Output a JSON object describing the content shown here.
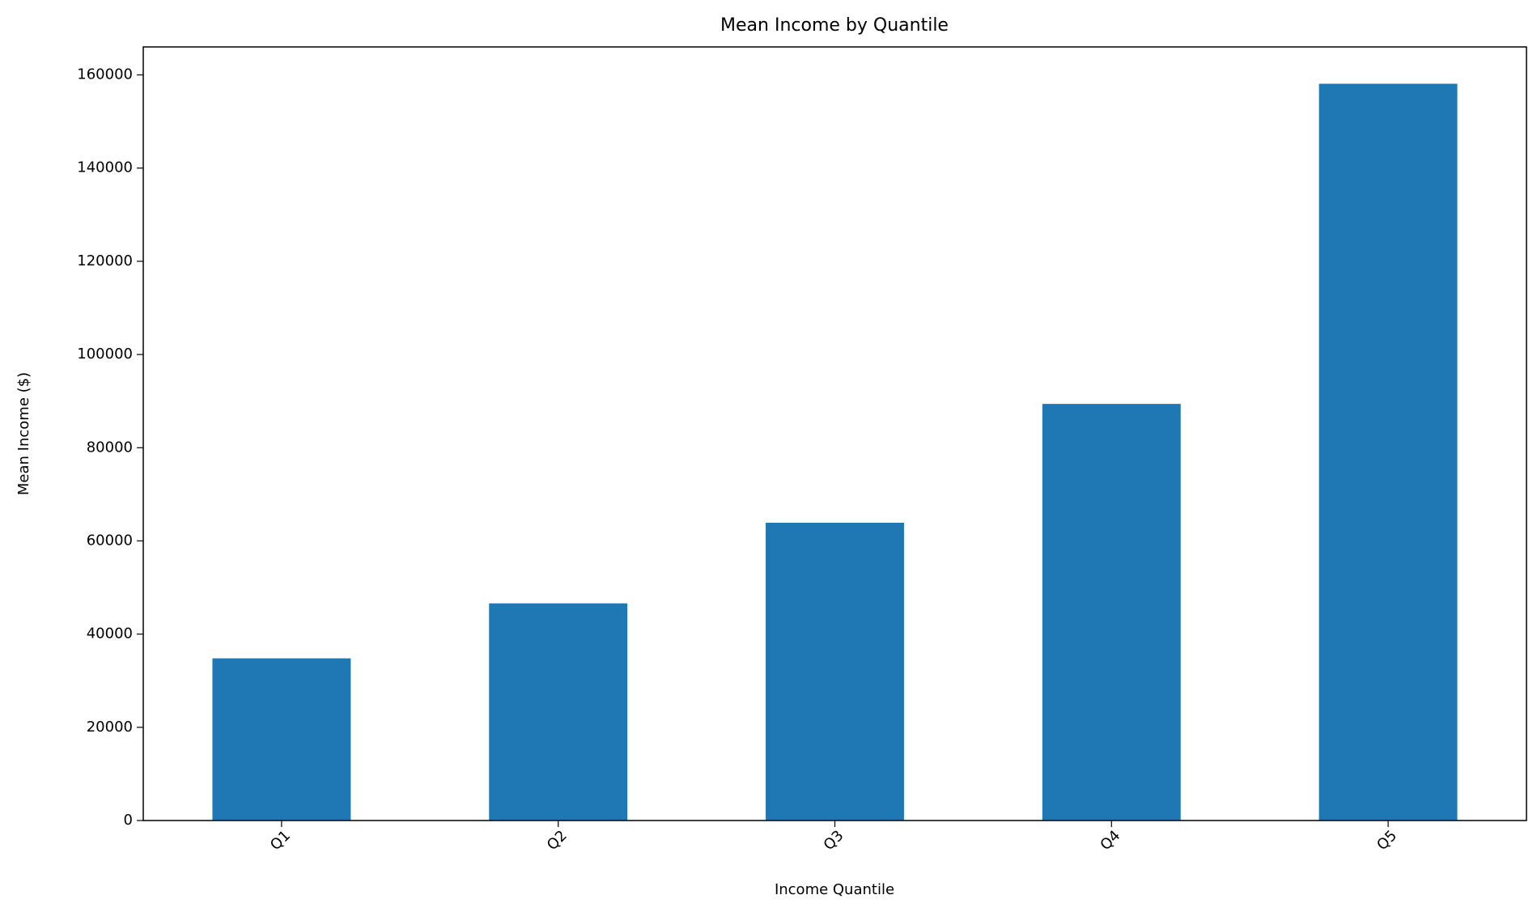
{
  "chart_data": {
    "type": "bar",
    "title": "Mean Income by Quantile",
    "x_label": "Income Quantile",
    "y_label": "Mean Income ($)",
    "categories": [
      "Q1",
      "Q2",
      "Q3",
      "Q4",
      "Q5"
    ],
    "values": [
      34800,
      46600,
      63900,
      89400,
      158100
    ],
    "color": "#1f77b4",
    "ylim": [
      0,
      166000
    ],
    "yticks": [
      0,
      20000,
      40000,
      60000,
      80000,
      100000,
      120000,
      140000,
      160000
    ],
    "grid": false
  }
}
